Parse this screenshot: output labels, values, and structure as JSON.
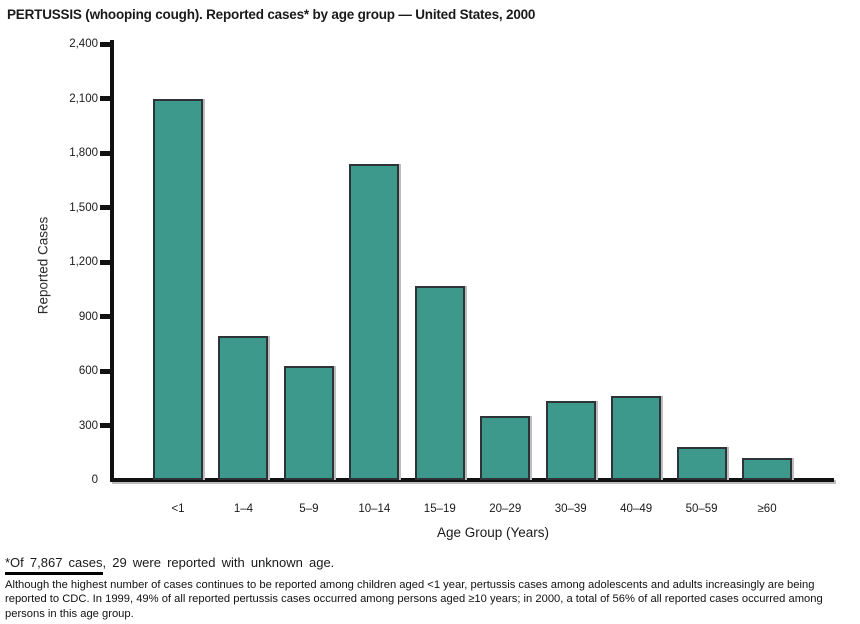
{
  "title": "PERTUSSIS (whooping cough). Reported cases* by age group — United States, 2000",
  "chart_data": {
    "type": "bar",
    "title": "PERTUSSIS (whooping cough). Reported cases* by age group — United States, 2000",
    "categories": [
      "<1",
      "1–4",
      "5–9",
      "10–14",
      "15–19",
      "20–29",
      "30–39",
      "40–49",
      "50–59",
      "≥60"
    ],
    "values": [
      2100,
      790,
      625,
      1740,
      1070,
      350,
      435,
      465,
      180,
      120
    ],
    "xlabel": "Age Group (Years)",
    "ylabel": "Reported Cases",
    "ylim": [
      0,
      2400
    ],
    "ytick_interval": 300,
    "ytick_labels": [
      "0",
      "300",
      "600",
      "900",
      "1,200",
      "1,500",
      "1,800",
      "2,100",
      "2,400"
    ],
    "grid": false,
    "legend": "none",
    "bar_color": "#3E998D",
    "bar_border_color": "#2E3338",
    "axis_color": "#111111"
  },
  "footnotes": {
    "note1_underlined": "*Of 7,867 cases",
    "note1_rest": ", 29 were reported with unknown age.",
    "note2_lines": [
      "Although the highest number of cases continues to be reported among children aged <1 year, pertussis cases among adolescents and adults increasingly are being",
      "reported to CDC. In 1999, 49% of all reported pertussis cases occurred among persons aged ≥10 years; in 2000, a total of 56% of all reported cases occurred among",
      "persons in this age group."
    ]
  }
}
